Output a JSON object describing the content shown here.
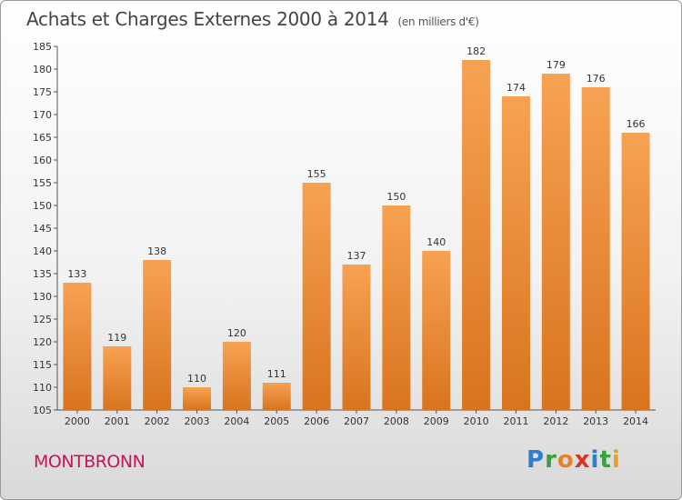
{
  "header": {
    "title": "Achats et Charges Externes 2000 à 2014",
    "subtitle": "(en milliers d'€)"
  },
  "footer": {
    "city": "MONTBRONN",
    "brand": "Proxiti"
  },
  "colors": {
    "bar_light": "#f7a253",
    "bar_dark": "#d9741e",
    "city": "#c2185b"
  },
  "chart_data": {
    "type": "bar",
    "title": "Achats et Charges Externes 2000 à 2014",
    "subtitle": "(en milliers d'€)",
    "categories": [
      "2000",
      "2001",
      "2002",
      "2003",
      "2004",
      "2005",
      "2006",
      "2007",
      "2008",
      "2009",
      "2010",
      "2011",
      "2012",
      "2013",
      "2014"
    ],
    "values": [
      133,
      119,
      138,
      110,
      120,
      111,
      155,
      137,
      150,
      140,
      182,
      174,
      179,
      176,
      166
    ],
    "xlabel": "",
    "ylabel": "",
    "ylim": [
      105,
      185
    ],
    "yticks": [
      105,
      110,
      115,
      120,
      125,
      130,
      135,
      140,
      145,
      150,
      155,
      160,
      165,
      170,
      175,
      180,
      185
    ],
    "grid": false,
    "legend": "none"
  }
}
